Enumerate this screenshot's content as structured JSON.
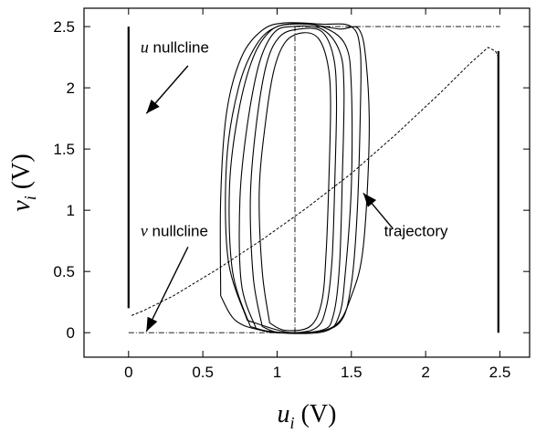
{
  "chart_data": {
    "type": "line",
    "xlabel": {
      "symbol": "u",
      "sub": "i",
      "unit": " (V)"
    },
    "ylabel": {
      "symbol": "v",
      "sub": "i",
      "unit": " (V)"
    },
    "xlim": [
      -0.3,
      2.7
    ],
    "ylim": [
      -0.2,
      2.65
    ],
    "xticks": [
      {
        "value": 0,
        "label": "0"
      },
      {
        "value": 0.5,
        "label": "0.5"
      },
      {
        "value": 1,
        "label": "1"
      },
      {
        "value": 1.5,
        "label": "1.5"
      },
      {
        "value": 2,
        "label": "2"
      },
      {
        "value": 2.5,
        "label": "2.5"
      }
    ],
    "yticks": [
      {
        "value": 0,
        "label": "0"
      },
      {
        "value": 0.5,
        "label": "0.5"
      },
      {
        "value": 1,
        "label": "1"
      },
      {
        "value": 1.5,
        "label": "1.5"
      },
      {
        "value": 2,
        "label": "2"
      },
      {
        "value": 2.5,
        "label": "2.5"
      }
    ],
    "grid": false,
    "series": [
      {
        "id": "u-nullcline",
        "style": "solid-bold",
        "segments": [
          [
            [
              0,
              2.5
            ],
            [
              0,
              0.2
            ]
          ],
          [
            [
              2.49,
              0
            ],
            [
              2.49,
              2.3
            ]
          ]
        ]
      },
      {
        "id": "u-nullcline-flat",
        "style": "dash-dot",
        "segments": [
          [
            [
              0,
              0
            ],
            [
              1.0,
              0
            ]
          ],
          [
            [
              1.12,
              2.5
            ],
            [
              2.5,
              2.5
            ]
          ],
          [
            [
              1.12,
              0
            ],
            [
              1.12,
              2.5
            ]
          ]
        ]
      },
      {
        "id": "v-nullcline",
        "style": "dashed",
        "points": [
          [
            0.02,
            0.14
          ],
          [
            0.1,
            0.18
          ],
          [
            0.3,
            0.3
          ],
          [
            0.6,
            0.52
          ],
          [
            0.9,
            0.76
          ],
          [
            1.2,
            1.02
          ],
          [
            1.5,
            1.3
          ],
          [
            1.8,
            1.62
          ],
          [
            2.1,
            1.96
          ],
          [
            2.3,
            2.2
          ],
          [
            2.42,
            2.33
          ],
          [
            2.47,
            2.3
          ],
          [
            2.49,
            2.25
          ]
        ]
      },
      {
        "id": "trajectory",
        "style": "solid",
        "loops": [
          [
            [
              0.86,
              0.03
            ],
            [
              0.76,
              0.4
            ],
            [
              0.75,
              1.1
            ],
            [
              0.8,
              1.7
            ],
            [
              0.88,
              2.2
            ],
            [
              0.98,
              2.45
            ],
            [
              1.1,
              2.5
            ],
            [
              1.3,
              2.48
            ],
            [
              1.42,
              2.3
            ],
            [
              1.45,
              2.0
            ],
            [
              1.44,
              1.3
            ],
            [
              1.42,
              0.55
            ],
            [
              1.38,
              0.15
            ],
            [
              1.3,
              0.02
            ],
            [
              1.0,
              0.0
            ],
            [
              0.86,
              0.03
            ]
          ],
          [
            [
              0.82,
              0.05
            ],
            [
              0.7,
              0.5
            ],
            [
              0.68,
              1.2
            ],
            [
              0.74,
              1.8
            ],
            [
              0.84,
              2.25
            ],
            [
              0.96,
              2.47
            ],
            [
              1.1,
              2.52
            ],
            [
              1.3,
              2.5
            ],
            [
              1.46,
              2.35
            ],
            [
              1.5,
              2.0
            ],
            [
              1.5,
              1.2
            ],
            [
              1.46,
              0.5
            ],
            [
              1.42,
              0.15
            ],
            [
              1.32,
              0.01
            ],
            [
              1.0,
              0.0
            ],
            [
              0.82,
              0.05
            ]
          ],
          [
            [
              0.8,
              0.1
            ],
            [
              0.67,
              0.6
            ],
            [
              0.66,
              1.4
            ],
            [
              0.74,
              2.0
            ],
            [
              0.86,
              2.35
            ],
            [
              1.0,
              2.5
            ],
            [
              1.2,
              2.52
            ],
            [
              1.42,
              2.48
            ],
            [
              1.55,
              2.48
            ],
            [
              1.6,
              2.2
            ],
            [
              1.62,
              1.6
            ],
            [
              1.58,
              0.7
            ],
            [
              1.5,
              0.3
            ],
            [
              1.38,
              0.05
            ],
            [
              1.1,
              0.0
            ],
            [
              0.8,
              0.1
            ]
          ],
          [
            [
              0.9,
              0.05
            ],
            [
              0.84,
              0.45
            ],
            [
              0.82,
              1.1
            ],
            [
              0.86,
              1.7
            ],
            [
              0.93,
              2.2
            ],
            [
              1.02,
              2.42
            ],
            [
              1.15,
              2.48
            ],
            [
              1.3,
              2.46
            ],
            [
              1.38,
              2.25
            ],
            [
              1.4,
              1.9
            ],
            [
              1.39,
              1.3
            ],
            [
              1.37,
              0.6
            ],
            [
              1.33,
              0.2
            ],
            [
              1.25,
              0.03
            ],
            [
              1.02,
              0.0
            ],
            [
              0.9,
              0.05
            ]
          ],
          [
            [
              0.95,
              0.08
            ],
            [
              0.9,
              0.5
            ],
            [
              0.88,
              1.15
            ],
            [
              0.92,
              1.7
            ],
            [
              0.98,
              2.15
            ],
            [
              1.06,
              2.38
            ],
            [
              1.18,
              2.45
            ],
            [
              1.28,
              2.4
            ],
            [
              1.34,
              2.2
            ],
            [
              1.36,
              1.9
            ],
            [
              1.35,
              1.3
            ],
            [
              1.33,
              0.65
            ],
            [
              1.3,
              0.25
            ],
            [
              1.22,
              0.05
            ],
            [
              1.05,
              0.02
            ],
            [
              0.95,
              0.08
            ]
          ],
          [
            [
              0.62,
              0.3
            ],
            [
              0.62,
              1.1
            ],
            [
              0.66,
              1.8
            ],
            [
              0.76,
              2.25
            ],
            [
              0.9,
              2.47
            ],
            [
              1.05,
              2.53
            ],
            [
              1.3,
              2.52
            ],
            [
              1.5,
              2.5
            ],
            [
              1.56,
              2.3
            ],
            [
              1.56,
              1.8
            ],
            [
              1.54,
              1.0
            ],
            [
              1.5,
              0.4
            ],
            [
              1.42,
              0.08
            ],
            [
              1.2,
              0.0
            ],
            [
              0.9,
              0.02
            ],
            [
              0.72,
              0.1
            ],
            [
              0.62,
              0.3
            ]
          ]
        ]
      }
    ],
    "annotations": [
      {
        "id": "u-nullcline-label",
        "var": "u",
        "text": " nullcline",
        "x": 0.08,
        "y": 2.29,
        "arrow_to": [
          0.12,
          1.79
        ],
        "arrow_from": [
          0.4,
          2.18
        ]
      },
      {
        "id": "v-nullcline-label",
        "var": "v",
        "text": " nullcline",
        "x": 0.08,
        "y": 0.79,
        "arrow_to": [
          0.12,
          0.01
        ],
        "arrow_from": [
          0.4,
          0.7
        ]
      },
      {
        "id": "trajectory-label",
        "var": "",
        "text": "trajectory",
        "x": 1.72,
        "y": 0.79,
        "arrow_to": [
          1.58,
          1.14
        ],
        "arrow_from": [
          1.78,
          0.85
        ]
      }
    ]
  }
}
